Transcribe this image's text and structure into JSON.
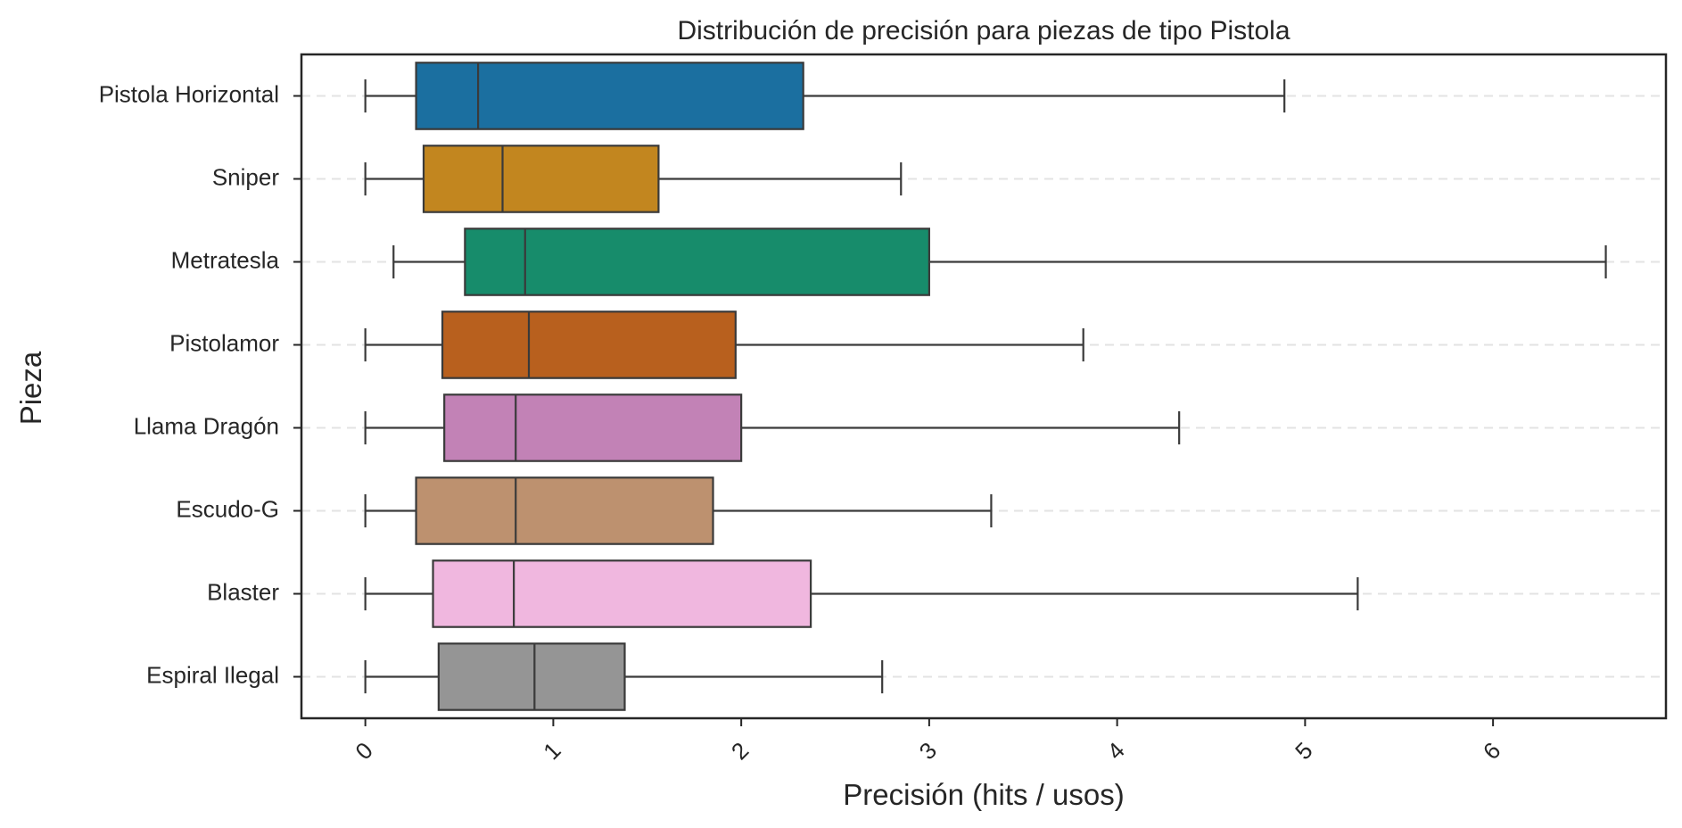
{
  "chart_data": {
    "type": "boxplot",
    "orientation": "horizontal",
    "title": "Distribución de precisión para piezas de tipo Pistola",
    "xlabel": "Precisión (hits / usos)",
    "ylabel": "Pieza",
    "xlim": [
      -0.34,
      6.92
    ],
    "xticks": [
      0,
      1,
      2,
      3,
      4,
      5,
      6
    ],
    "xtick_labels": [
      "0",
      "1",
      "2",
      "3",
      "4",
      "5",
      "6"
    ],
    "xtick_rotation": -45,
    "grid": "horizontal dashed",
    "categories": [
      "Pistola Horizontal",
      "Sniper",
      "Metratesla",
      "Pistolamor",
      "Llama Dragón",
      "Escudo-G",
      "Blaster",
      "Espiral Ilegal"
    ],
    "colors": [
      "#1b6fa0",
      "#c2861f",
      "#178c6b",
      "#b8601e",
      "#c282b6",
      "#bd916f",
      "#f0b7df",
      "#959595"
    ],
    "series": [
      {
        "whisker_low": 0.0,
        "q1": 0.27,
        "median": 0.6,
        "q3": 2.33,
        "whisker_high": 4.89
      },
      {
        "whisker_low": 0.0,
        "q1": 0.31,
        "median": 0.73,
        "q3": 1.56,
        "whisker_high": 2.85
      },
      {
        "whisker_low": 0.15,
        "q1": 0.53,
        "median": 0.85,
        "q3": 3.0,
        "whisker_high": 6.6
      },
      {
        "whisker_low": 0.0,
        "q1": 0.41,
        "median": 0.87,
        "q3": 1.97,
        "whisker_high": 3.82
      },
      {
        "whisker_low": 0.0,
        "q1": 0.42,
        "median": 0.8,
        "q3": 2.0,
        "whisker_high": 4.33
      },
      {
        "whisker_low": 0.0,
        "q1": 0.27,
        "median": 0.8,
        "q3": 1.85,
        "whisker_high": 3.33
      },
      {
        "whisker_low": 0.0,
        "q1": 0.36,
        "median": 0.79,
        "q3": 2.37,
        "whisker_high": 5.28
      },
      {
        "whisker_low": 0.0,
        "q1": 0.39,
        "median": 0.9,
        "q3": 1.38,
        "whisker_high": 2.75
      }
    ]
  }
}
